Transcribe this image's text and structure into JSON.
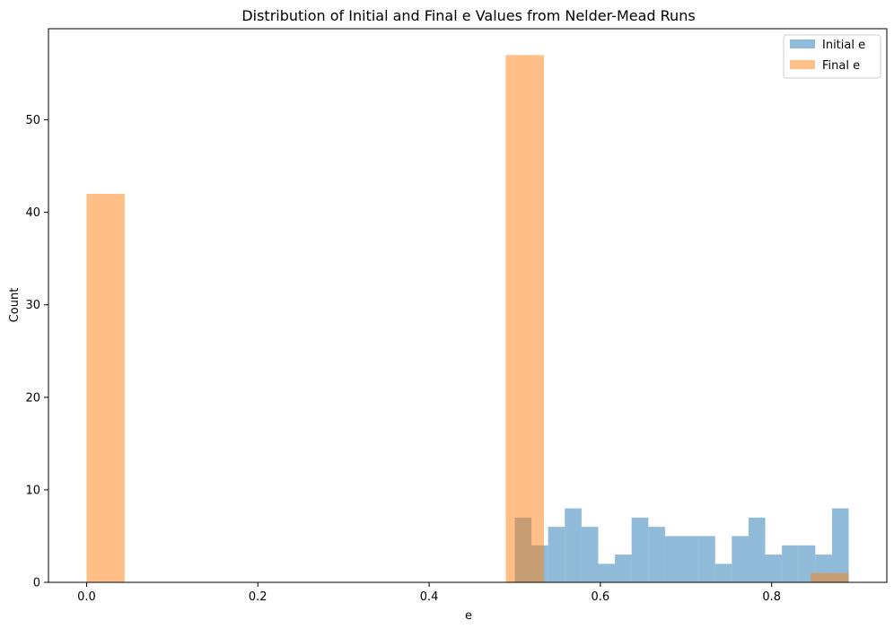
{
  "chart_data": {
    "type": "bar",
    "title": "Distribution of Initial and Final e Values from Nelder-Mead Runs",
    "xlabel": "e",
    "ylabel": "Count",
    "xlim": [
      -0.0445,
      0.9345
    ],
    "ylim": [
      0,
      59.85
    ],
    "xticks": [
      0.0,
      0.2,
      0.4,
      0.6,
      0.8
    ],
    "xtick_labels": [
      "0.0",
      "0.2",
      "0.4",
      "0.6",
      "0.8"
    ],
    "yticks": [
      0,
      10,
      20,
      30,
      40,
      50
    ],
    "ytick_labels": [
      "0",
      "10",
      "20",
      "30",
      "40",
      "50"
    ],
    "grid": false,
    "legend_position": "top-right",
    "series": [
      {
        "name": "Initial e",
        "color": "#1f77b4",
        "opacity": 0.5,
        "bins": [
          {
            "x0": 0.5,
            "x1": 0.5195,
            "count": 7
          },
          {
            "x0": 0.5195,
            "x1": 0.539,
            "count": 4
          },
          {
            "x0": 0.539,
            "x1": 0.5585,
            "count": 6
          },
          {
            "x0": 0.5585,
            "x1": 0.578,
            "count": 8
          },
          {
            "x0": 0.578,
            "x1": 0.5975,
            "count": 6
          },
          {
            "x0": 0.5975,
            "x1": 0.617,
            "count": 2
          },
          {
            "x0": 0.617,
            "x1": 0.6365,
            "count": 3
          },
          {
            "x0": 0.6365,
            "x1": 0.656,
            "count": 7
          },
          {
            "x0": 0.656,
            "x1": 0.6755,
            "count": 6
          },
          {
            "x0": 0.6755,
            "x1": 0.695,
            "count": 5
          },
          {
            "x0": 0.695,
            "x1": 0.7145,
            "count": 5
          },
          {
            "x0": 0.7145,
            "x1": 0.734,
            "count": 5
          },
          {
            "x0": 0.734,
            "x1": 0.7535,
            "count": 2
          },
          {
            "x0": 0.7535,
            "x1": 0.773,
            "count": 5
          },
          {
            "x0": 0.773,
            "x1": 0.7925,
            "count": 7
          },
          {
            "x0": 0.7925,
            "x1": 0.812,
            "count": 3
          },
          {
            "x0": 0.812,
            "x1": 0.8315,
            "count": 4
          },
          {
            "x0": 0.8315,
            "x1": 0.851,
            "count": 4
          },
          {
            "x0": 0.851,
            "x1": 0.8705,
            "count": 3
          },
          {
            "x0": 0.8705,
            "x1": 0.89,
            "count": 8
          }
        ]
      },
      {
        "name": "Final e",
        "color": "#ff7f0e",
        "opacity": 0.5,
        "bins": [
          {
            "x0": 0.0,
            "x1": 0.0445,
            "count": 42
          },
          {
            "x0": 0.4895,
            "x1": 0.534,
            "count": 57
          },
          {
            "x0": 0.8455,
            "x1": 0.89,
            "count": 1
          }
        ]
      }
    ]
  }
}
